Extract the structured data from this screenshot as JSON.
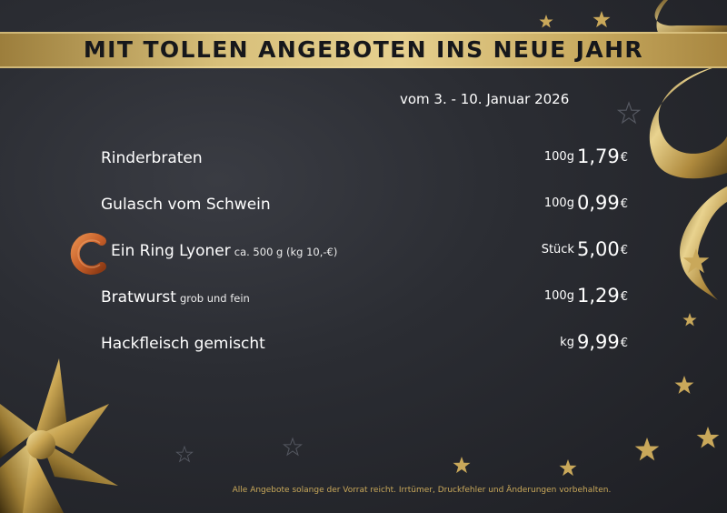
{
  "header": {
    "title": "MIT TOLLEN ANGEBOTEN INS NEUE JAHR"
  },
  "date_range": "vom 3. - 10. Januar 2026",
  "items": [
    {
      "name": "Rinderbraten",
      "note": "",
      "unit": "100g",
      "price": "1,79",
      "currency": "€"
    },
    {
      "name": "Gulasch vom Schwein",
      "note": "",
      "unit": "100g",
      "price": "0,99",
      "currency": "€"
    },
    {
      "name": "Ein Ring Lyoner",
      "note": "ca. 500 g (kg 10,-€)",
      "unit": "Stück",
      "price": "5,00",
      "currency": "€"
    },
    {
      "name": "Bratwurst",
      "note": "grob und fein",
      "unit": "100g",
      "price": "1,29",
      "currency": "€"
    },
    {
      "name": "Hackfleisch gemischt",
      "note": "",
      "unit": "kg",
      "price": "9,99",
      "currency": "€"
    }
  ],
  "footer": "Alle Angebote solange der Vorrat reicht.  Irrtümer, Druckfehler und Änderungen vorbehalten.",
  "colors": {
    "gold": "#d7bf7a",
    "background": "#2b2d33",
    "text": "#ffffff",
    "footer_text": "#c9a85a",
    "sausage": "#c8602a"
  },
  "icons": {
    "item_3_icon": "lyoner-ring-icon",
    "decoration": [
      "gold-bow-icon",
      "gold-ribbon-icon",
      "gold-star-icon"
    ]
  }
}
